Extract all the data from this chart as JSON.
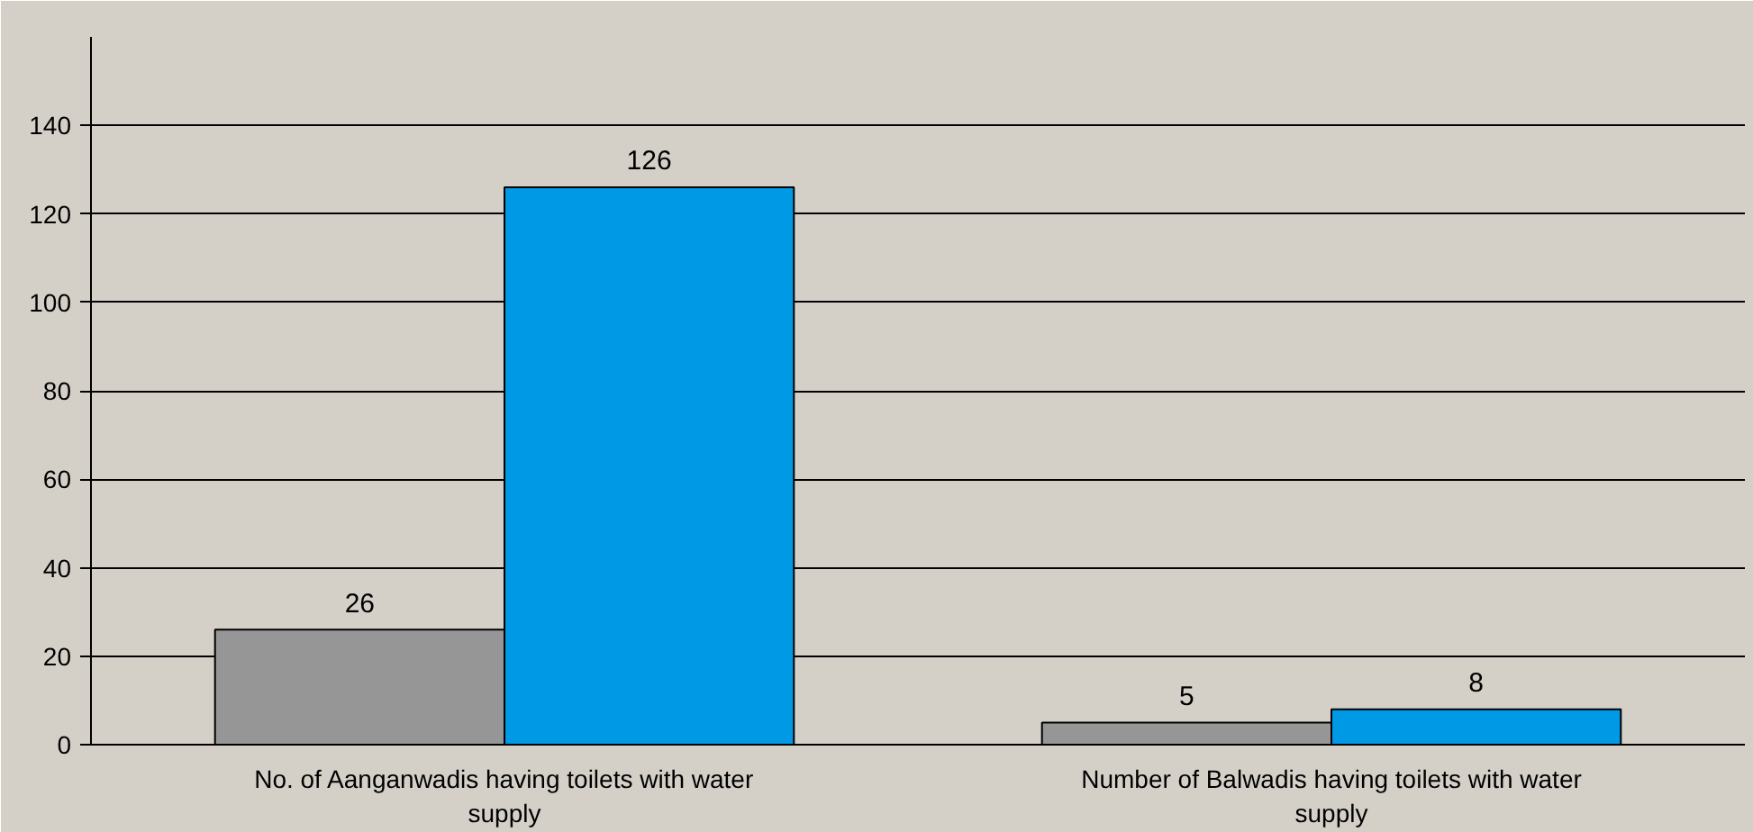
{
  "chart_data": {
    "type": "bar",
    "categories": [
      "No. of Aanganwadis having toilets with water supply",
      "Number of Balwadis having toilets with water supply"
    ],
    "series": [
      {
        "color": "#969696",
        "values": [
          26,
          5
        ]
      },
      {
        "color": "#0099e6",
        "values": [
          126,
          8
        ]
      }
    ],
    "ylim": [
      0,
      160
    ],
    "yticks": [
      0,
      20,
      40,
      60,
      80,
      100,
      120,
      140
    ],
    "grid": "y",
    "data_labels": true
  }
}
